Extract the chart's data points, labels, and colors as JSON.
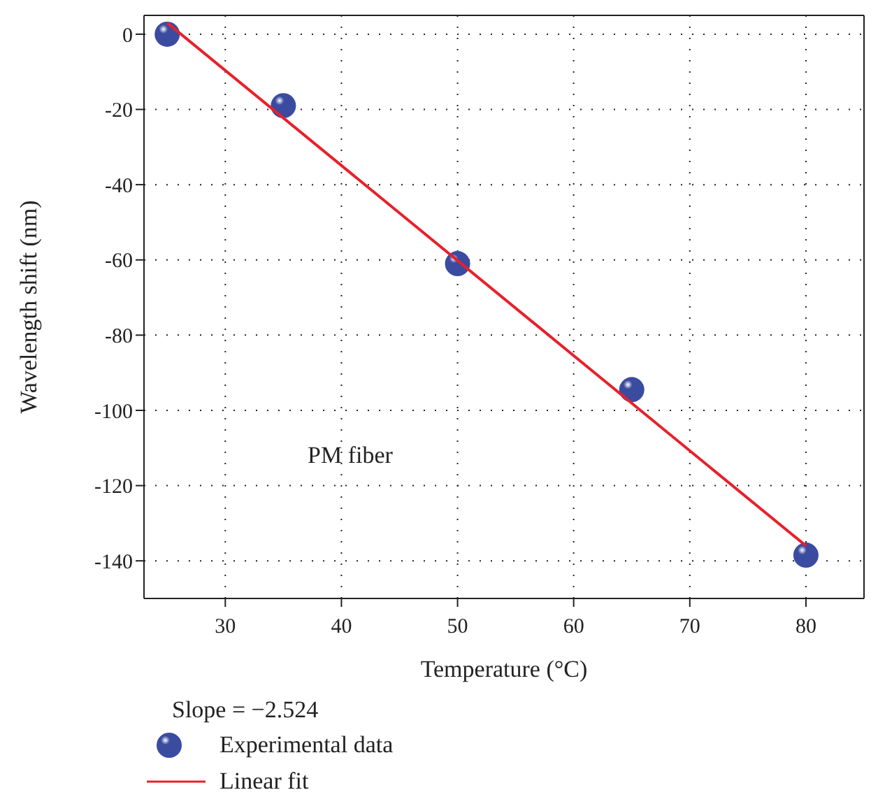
{
  "chart_data": {
    "type": "scatter",
    "xlabel": "Temperature (°C)",
    "ylabel": "Wavelength shift (nm)",
    "annotations": [
      "PM fiber",
      "Slope = −2.524"
    ],
    "series": [
      {
        "name": "Experimental data",
        "marker": "circle",
        "color": "#3a4ba0",
        "x": [
          25,
          35,
          50,
          65,
          80
        ],
        "values": [
          0,
          -19,
          -61,
          -94.5,
          -138.5
        ]
      },
      {
        "name": "Linear fit",
        "type": "line",
        "color": "#e8202a",
        "x": [
          25,
          80
        ],
        "values": [
          3,
          -136
        ]
      }
    ],
    "xlim": [
      23,
      85
    ],
    "xticks": [
      30,
      40,
      50,
      60,
      70,
      80
    ],
    "ylim": [
      -150,
      5
    ],
    "yticks": [
      0,
      -20,
      -40,
      -60,
      -80,
      -100,
      -120,
      -140
    ],
    "grid": true,
    "legend": "bottom"
  }
}
